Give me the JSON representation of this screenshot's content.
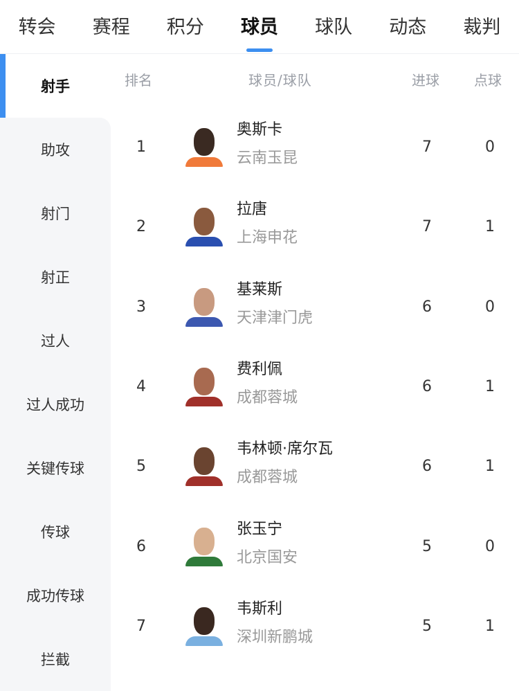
{
  "tabs": [
    "转会",
    "赛程",
    "积分",
    "球员",
    "球队",
    "动态",
    "裁判"
  ],
  "active_tab": "球员",
  "sidebar": [
    "射手",
    "助攻",
    "射门",
    "射正",
    "过人",
    "过人成功",
    "关键传球",
    "传球",
    "成功传球",
    "拦截"
  ],
  "active_sidebar": "射手",
  "header": {
    "rank": "排名",
    "player_team": "球员/球队",
    "goals": "进球",
    "penalties": "点球"
  },
  "rows": [
    {
      "rank": "1",
      "name": "奥斯卡",
      "team": "云南玉昆",
      "goals": "7",
      "penalties": "0",
      "skin": "#3a2a22",
      "shirt": "#f07a3a"
    },
    {
      "rank": "2",
      "name": "拉唐",
      "team": "上海申花",
      "goals": "7",
      "penalties": "1",
      "skin": "#8a5a3e",
      "shirt": "#2a4fb0"
    },
    {
      "rank": "3",
      "name": "基莱斯",
      "team": "天津津门虎",
      "goals": "6",
      "penalties": "0",
      "skin": "#c89a80",
      "shirt": "#3c58b0"
    },
    {
      "rank": "4",
      "name": "费利佩",
      "team": "成都蓉城",
      "goals": "6",
      "penalties": "1",
      "skin": "#a86a50",
      "shirt": "#a0302a"
    },
    {
      "rank": "5",
      "name": "韦林顿·席尔瓦",
      "team": "成都蓉城",
      "goals": "6",
      "penalties": "1",
      "skin": "#6a4430",
      "shirt": "#a0302a"
    },
    {
      "rank": "6",
      "name": "张玉宁",
      "team": "北京国安",
      "goals": "5",
      "penalties": "0",
      "skin": "#d8b090",
      "shirt": "#2f7a3a"
    },
    {
      "rank": "7",
      "name": "韦斯利",
      "team": "深圳新鹏城",
      "goals": "5",
      "penalties": "1",
      "skin": "#3a2820",
      "shirt": "#7ab0e0"
    }
  ],
  "colors": {
    "accent": "#3d8ff0",
    "sidebar_bg": "#f5f6f8"
  }
}
